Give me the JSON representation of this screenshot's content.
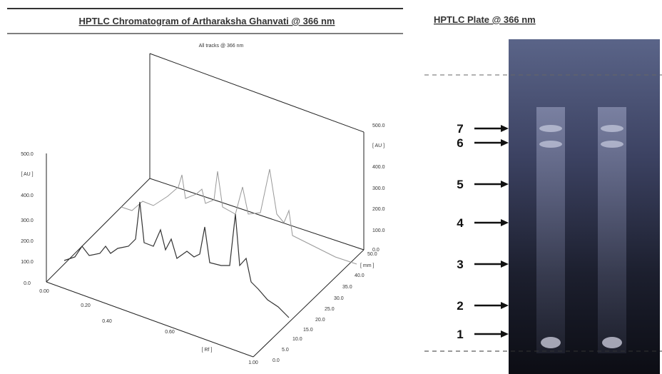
{
  "chromatogram": {
    "title": "HPTLC Chromatogram of Artharaksha Ghanvati @ 366 nm",
    "inner_title": "All tracks @ 366 nm",
    "y_axis_label": "[ AU ]",
    "y_ticks": [
      "500.0",
      "400.0",
      "300.0",
      "200.0",
      "100.0",
      "0.0"
    ],
    "y2_axis_label": "[ AU ]",
    "y2_ticks": [
      "500.0",
      "400.0",
      "300.0",
      "200.0",
      "100.0",
      "0.0"
    ],
    "x_axis_label": "[ Rf ]",
    "x_ticks": [
      "0.00",
      "0.20",
      "0.40",
      "0.60",
      "1.00"
    ],
    "z_axis_label": "[ mm ]",
    "z_ticks": [
      "50.0",
      "40.0",
      "35.0",
      "30.0",
      "25.0",
      "20.0",
      "15.0",
      "10.0",
      "5.0",
      "0.0"
    ]
  },
  "plate": {
    "title": "HPTLC Plate @ 366 nm",
    "bands": [
      "7",
      "6",
      "5",
      "4",
      "3",
      "2",
      "1"
    ]
  }
}
